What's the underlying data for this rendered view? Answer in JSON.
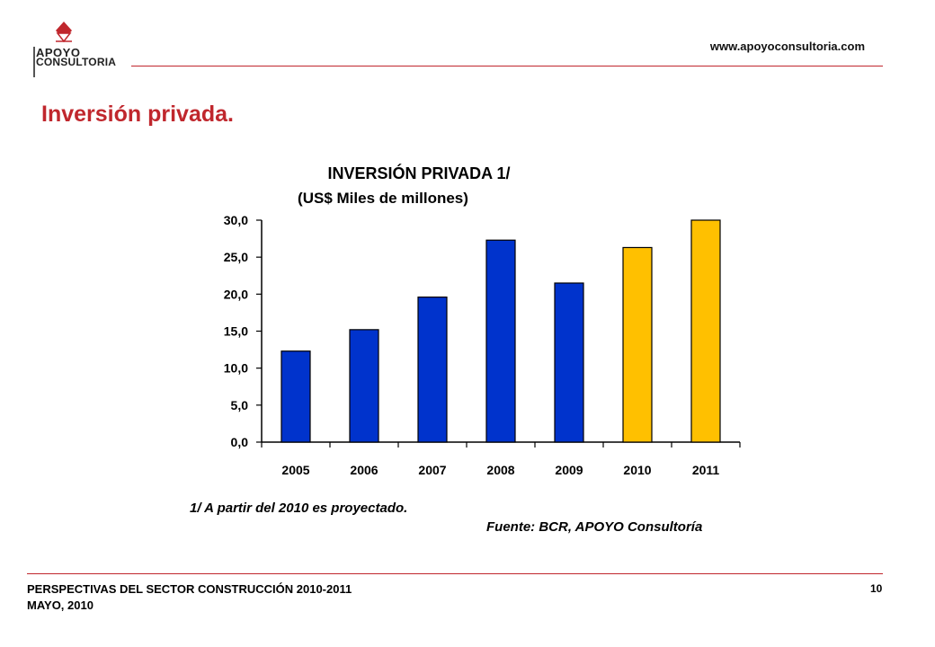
{
  "header": {
    "logo_line_1": "APOYO",
    "logo_line_2": "CONSULTORIA",
    "website": "www.apoyoconsultoria.com"
  },
  "page_title": "Inversión privada.",
  "chart_data": {
    "type": "bar",
    "title": "INVERSIÓN PRIVADA 1/",
    "subtitle": "(US$ Miles de millones)",
    "categories": [
      "2005",
      "2006",
      "2007",
      "2008",
      "2009",
      "2010",
      "2011"
    ],
    "values": [
      12.3,
      15.2,
      19.6,
      27.3,
      21.5,
      26.3,
      30.0
    ],
    "bar_colors": [
      "#0033cc",
      "#0033cc",
      "#0033cc",
      "#0033cc",
      "#0033cc",
      "#ffc000",
      "#ffc000"
    ],
    "ylim": [
      0,
      30
    ],
    "yticks": [
      "0,0",
      "5,0",
      "10,0",
      "15,0",
      "20,0",
      "25,0",
      "30,0"
    ],
    "xlabel": "",
    "ylabel": "",
    "grid": false,
    "legend": "none"
  },
  "footnote": "1/ A partir del 2010 es proyectado.",
  "source": "Fuente: BCR, APOYO Consultoría",
  "footer": {
    "line_1": "PERSPECTIVAS DEL SECTOR CONSTRUCCIÓN 2010-2011",
    "line_2": "MAYO, 2010",
    "page_number": "10"
  },
  "colors": {
    "brand_red": "#c0272d",
    "historic_bar": "#0033cc",
    "projected_bar": "#ffc000"
  }
}
